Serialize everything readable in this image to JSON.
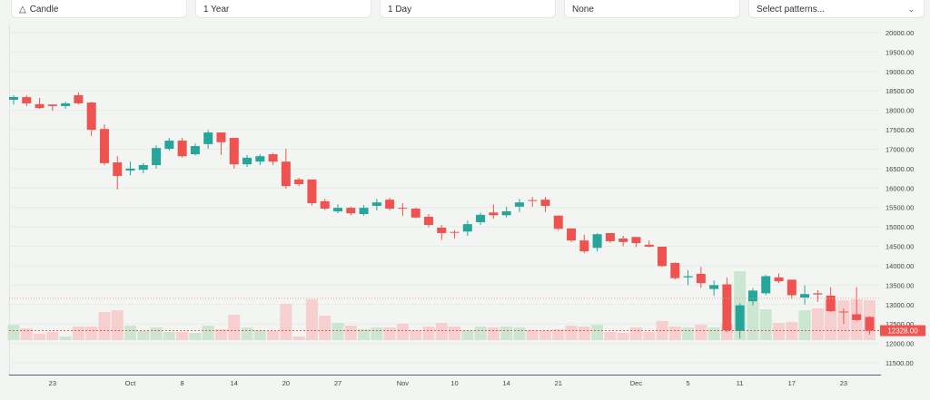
{
  "toolbar": {
    "chart_type": {
      "label": "Candle",
      "icon": "candle-icon"
    },
    "range": {
      "label": "1 Year"
    },
    "interval": {
      "label": "1 Day"
    },
    "indicator": {
      "label": "None"
    },
    "patterns": {
      "placeholder": "Select patterns...",
      "icon": "chevron-down-icon"
    }
  },
  "chart_data": {
    "type": "candlestick",
    "colors": {
      "up": "#26a69a",
      "down": "#ef5350",
      "volume_up": "#c8e6d0",
      "volume_down": "#f5cccc"
    },
    "ylim": [
      11500,
      20000
    ],
    "y_ticks": [
      "20000.00",
      "19500.00",
      "19000.00",
      "18500.00",
      "18000.00",
      "17500.00",
      "17000.00",
      "16500.00",
      "16000.00",
      "15500.00",
      "15000.00",
      "14500.00",
      "14000.00",
      "13500.00",
      "13000.00",
      "12500.00",
      "12000.00",
      "11500.00"
    ],
    "x_ticks": [
      {
        "label": "23",
        "index": 3
      },
      {
        "label": "Oct",
        "index": 9
      },
      {
        "label": "8",
        "index": 13
      },
      {
        "label": "14",
        "index": 17
      },
      {
        "label": "20",
        "index": 21
      },
      {
        "label": "27",
        "index": 25
      },
      {
        "label": "Nov",
        "index": 30
      },
      {
        "label": "10",
        "index": 34
      },
      {
        "label": "14",
        "index": 38
      },
      {
        "label": "21",
        "index": 42
      },
      {
        "label": "Dec",
        "index": 48
      },
      {
        "label": "5",
        "index": 52
      },
      {
        "label": "11",
        "index": 56
      },
      {
        "label": "17",
        "index": 60
      },
      {
        "label": "23",
        "index": 64
      }
    ],
    "last_price": "12328.00",
    "reference_price": 13160,
    "candles": [
      [
        18272,
        18390,
        18150,
        18342
      ],
      [
        18340,
        18390,
        18110,
        18180
      ],
      [
        18160,
        18320,
        18040,
        18060
      ],
      [
        18150,
        18150,
        17990,
        18110
      ],
      [
        18110,
        18220,
        18040,
        18180
      ],
      [
        18390,
        18460,
        18150,
        18180
      ],
      [
        18200,
        18220,
        17340,
        17500
      ],
      [
        17520,
        17640,
        16590,
        16640
      ],
      [
        16660,
        16820,
        15960,
        16310
      ],
      [
        16450,
        16680,
        16330,
        16500
      ],
      [
        16470,
        16640,
        16380,
        16590
      ],
      [
        16590,
        17100,
        16500,
        17030
      ],
      [
        17010,
        17290,
        16960,
        17220
      ],
      [
        17220,
        17290,
        16780,
        16820
      ],
      [
        16870,
        17150,
        16840,
        17080
      ],
      [
        17130,
        17490,
        17010,
        17430
      ],
      [
        17430,
        17430,
        16850,
        17180
      ],
      [
        17290,
        17290,
        16500,
        16610
      ],
      [
        16610,
        16850,
        16540,
        16780
      ],
      [
        16680,
        16870,
        16590,
        16820
      ],
      [
        16870,
        16900,
        16590,
        16680
      ],
      [
        16680,
        17010,
        15980,
        16050
      ],
      [
        16220,
        16260,
        16050,
        16100
      ],
      [
        16220,
        16220,
        15550,
        15610
      ],
      [
        15660,
        15720,
        15430,
        15470
      ],
      [
        15400,
        15580,
        15350,
        15490
      ],
      [
        15490,
        15520,
        15300,
        15350
      ],
      [
        15330,
        15560,
        15290,
        15490
      ],
      [
        15540,
        15720,
        15420,
        15630
      ],
      [
        15700,
        15750,
        15420,
        15470
      ],
      [
        15490,
        15610,
        15280,
        15470
      ],
      [
        15470,
        15490,
        15220,
        15240
      ],
      [
        15260,
        15330,
        14990,
        15050
      ],
      [
        14980,
        15050,
        14660,
        14840
      ],
      [
        14870,
        14920,
        14700,
        14850
      ],
      [
        14880,
        15160,
        14770,
        15070
      ],
      [
        15120,
        15360,
        15050,
        15310
      ],
      [
        15370,
        15580,
        15210,
        15300
      ],
      [
        15300,
        15520,
        15240,
        15400
      ],
      [
        15520,
        15720,
        15380,
        15630
      ],
      [
        15690,
        15770,
        15520,
        15680
      ],
      [
        15700,
        15770,
        15380,
        15540
      ],
      [
        15290,
        15290,
        14900,
        14950
      ],
      [
        14960,
        14960,
        14610,
        14650
      ],
      [
        14650,
        14800,
        14330,
        14370
      ],
      [
        14460,
        14840,
        14370,
        14810
      ],
      [
        14840,
        14840,
        14590,
        14630
      ],
      [
        14700,
        14770,
        14500,
        14610
      ],
      [
        14740,
        14740,
        14480,
        14580
      ],
      [
        14540,
        14650,
        14470,
        14490
      ],
      [
        14490,
        14490,
        13970,
        13990
      ],
      [
        14070,
        14090,
        13650,
        13680
      ],
      [
        13700,
        13890,
        13500,
        13730
      ],
      [
        13790,
        13970,
        13430,
        13550
      ],
      [
        13400,
        13620,
        13230,
        13500
      ],
      [
        13520,
        13700,
        12300,
        12340
      ],
      [
        12320,
        13030,
        12130,
        12980
      ],
      [
        13080,
        13420,
        12980,
        13360
      ],
      [
        13290,
        13760,
        13240,
        13730
      ],
      [
        13700,
        13800,
        13550,
        13600
      ],
      [
        13640,
        13640,
        13150,
        13240
      ],
      [
        13180,
        13490,
        13000,
        13270
      ],
      [
        13290,
        13370,
        13070,
        13260
      ],
      [
        13230,
        13450,
        12800,
        12830
      ],
      [
        12820,
        12900,
        12500,
        12800
      ],
      [
        12750,
        13450,
        12580,
        12600
      ],
      [
        12680,
        12700,
        12230,
        12328
      ]
    ],
    "candle_fields": [
      "open",
      "high",
      "low",
      "close"
    ],
    "volume_relative": [
      17,
      13,
      7,
      9,
      4,
      15,
      15,
      31,
      33,
      16,
      10,
      14,
      9,
      9,
      8,
      16,
      12,
      28,
      14,
      11,
      10,
      40,
      4,
      45,
      27,
      19,
      16,
      12,
      14,
      14,
      18,
      11,
      15,
      19,
      15,
      11,
      15,
      14,
      15,
      14,
      11,
      11,
      12,
      16,
      15,
      17,
      9,
      8,
      14,
      9,
      21,
      15,
      14,
      17,
      14,
      17,
      76,
      42,
      34,
      19,
      20,
      33,
      35,
      44,
      44,
      45,
      44
    ]
  }
}
